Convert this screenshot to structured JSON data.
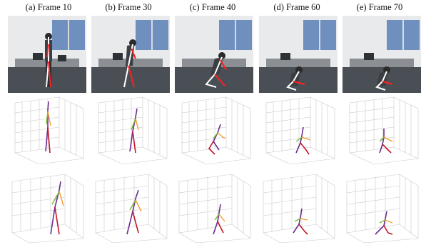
{
  "captions": [
    "(a) Frame 10",
    "(b) Frame 30",
    "(c) Frame 40",
    "(d) Frame 60",
    "(e) Frame 70"
  ],
  "colors": {
    "wall": "#e8eaeb",
    "window": "#6f8fbf",
    "floor": "#4a4f55",
    "desk": "#8b8f93",
    "overlay_red": "#ff2020",
    "overlay_white": "#ffffff",
    "skel_orange": "#f39c2a",
    "skel_red": "#c4162a",
    "skel_purple": "#6a2c8f",
    "skel_green": "#7ab832",
    "grid": "#c9c9c9"
  }
}
